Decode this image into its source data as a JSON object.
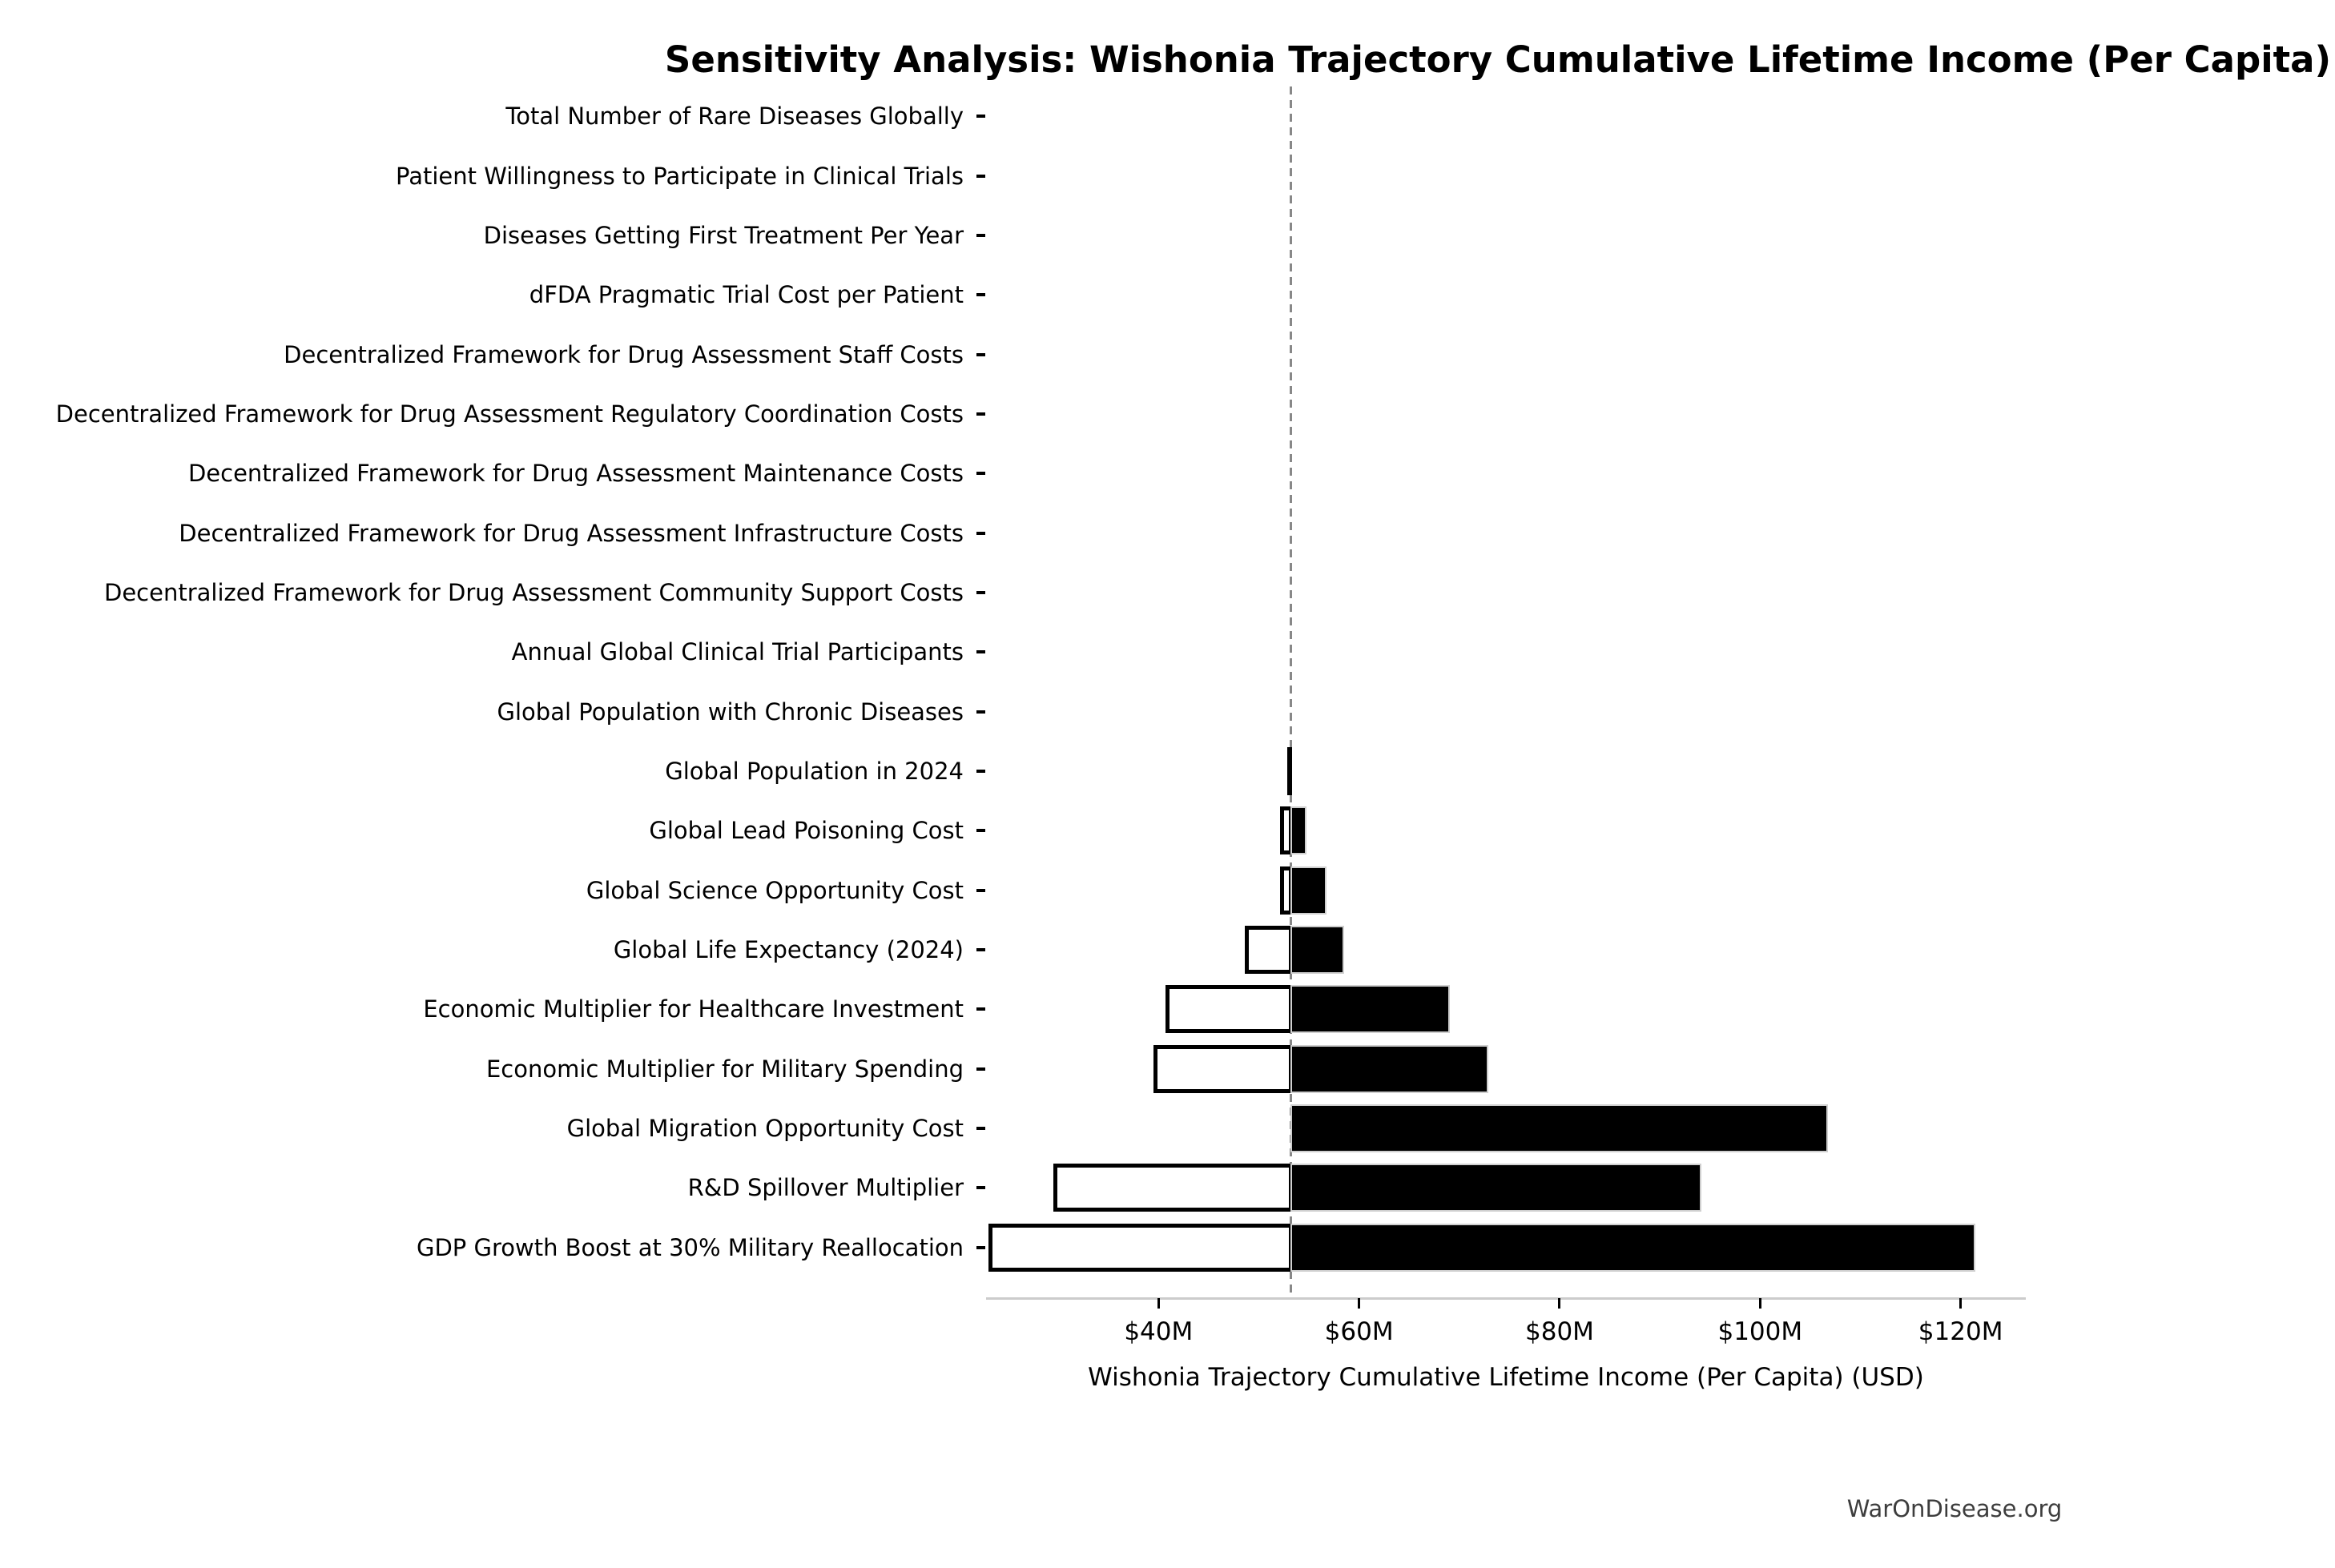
{
  "page": {
    "watermark": "WarOnDisease.org"
  },
  "chart_data": {
    "type": "bar",
    "subtype": "tornado-sensitivity",
    "title": "Sensitivity Analysis: Wishonia Trajectory Cumulative Lifetime Income (Per Capita)",
    "xlabel": "Wishonia Trajectory Cumulative Lifetime Income (Per Capita) (USD)",
    "x_unit": "USD, millions",
    "xlim": [
      22.8,
      126.5
    ],
    "baseline_value": 53.2,
    "grid": false,
    "legend": false,
    "colors": {
      "low_bar_fill": "#ffffff",
      "low_bar_edge": "#000000",
      "high_bar_fill": "#000000",
      "high_bar_edge": "#cfcfcf",
      "baseline_line": "#888888",
      "axis_line": "#cccccc",
      "text": "#000000",
      "watermark_text": "#3d3d3d"
    },
    "x_ticks": [
      {
        "value": 40,
        "label": "$40M"
      },
      {
        "value": 60,
        "label": "$60M"
      },
      {
        "value": 80,
        "label": "$80M"
      },
      {
        "value": 100,
        "label": "$100M"
      },
      {
        "value": 120,
        "label": "$120M"
      }
    ],
    "rows": [
      {
        "label": "Total Number of Rare Diseases Globally",
        "low": 53.2,
        "high": 53.2
      },
      {
        "label": "Patient Willingness to Participate in Clinical Trials",
        "low": 53.2,
        "high": 53.2
      },
      {
        "label": "Diseases Getting First Treatment Per Year",
        "low": 53.2,
        "high": 53.2
      },
      {
        "label": "dFDA Pragmatic Trial Cost per Patient",
        "low": 53.2,
        "high": 53.2
      },
      {
        "label": "Decentralized Framework for Drug Assessment Staff Costs",
        "low": 53.2,
        "high": 53.2
      },
      {
        "label": "Decentralized Framework for Drug Assessment Regulatory Coordination Costs",
        "low": 53.2,
        "high": 53.2
      },
      {
        "label": "Decentralized Framework for Drug Assessment Maintenance Costs",
        "low": 53.2,
        "high": 53.2
      },
      {
        "label": "Decentralized Framework for Drug Assessment Infrastructure Costs",
        "low": 53.2,
        "high": 53.2
      },
      {
        "label": "Decentralized Framework for Drug Assessment Community Support Costs",
        "low": 53.2,
        "high": 53.2
      },
      {
        "label": "Annual Global Clinical Trial Participants",
        "low": 53.2,
        "high": 53.2
      },
      {
        "label": "Global Population with Chronic Diseases",
        "low": 53.2,
        "high": 53.2
      },
      {
        "label": "Global Population in 2024",
        "low": 52.8,
        "high": 53.3
      },
      {
        "label": "Global Lead Poisoning Cost",
        "low": 52.3,
        "high": 54.7
      },
      {
        "label": "Global Science Opportunity Cost",
        "low": 52.3,
        "high": 56.7
      },
      {
        "label": "Global Life Expectancy (2024)",
        "low": 48.8,
        "high": 58.4
      },
      {
        "label": "Economic Multiplier for Healthcare Investment",
        "low": 40.9,
        "high": 69.0
      },
      {
        "label": "Economic Multiplier for Military Spending",
        "low": 39.7,
        "high": 72.8
      },
      {
        "label": "Global Migration Opportunity Cost",
        "low": 53.2,
        "high": 106.7
      },
      {
        "label": "R&D Spillover Multiplier",
        "low": 29.7,
        "high": 94.1
      },
      {
        "label": "GDP Growth Boost at 30% Military Reallocation",
        "low": 23.2,
        "high": 121.4
      }
    ]
  }
}
